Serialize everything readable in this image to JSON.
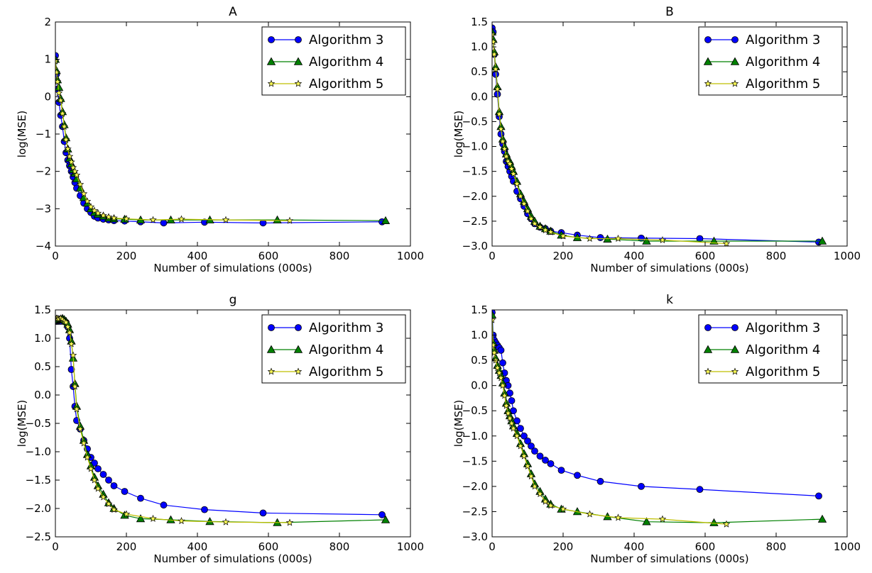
{
  "figure": {
    "legend_labels": [
      "Algorithm 3",
      "Algorithm 4",
      "Algorithm 5"
    ],
    "series_colors": {
      "Algorithm 3": "#0000ff",
      "Algorithm 4": "#008000",
      "Algorithm 5": "#bfbf00"
    },
    "marker_fills": {
      "Algorithm 3": "#0000ff",
      "Algorithm 4": "#008000",
      "Algorithm 5": "#ffff55"
    },
    "marker_shapes": {
      "Algorithm 3": "circle",
      "Algorithm 4": "triangle",
      "Algorithm 5": "star"
    }
  },
  "chart_data": [
    {
      "type": "line",
      "title": "A",
      "xlabel": "Number of simulations (000s)",
      "ylabel": "log(MSE)",
      "xlim": [
        0,
        1000
      ],
      "ylim": [
        -4,
        2
      ],
      "xticks": [
        0,
        200,
        400,
        600,
        800,
        1000
      ],
      "yticks": [
        -4,
        -3,
        -2,
        -1,
        0,
        1,
        2
      ],
      "ytick_labels": [
        "−4",
        "−3",
        "−2",
        "−1",
        "0",
        "1",
        "2"
      ],
      "xtick_labels": [
        "0",
        "200",
        "400",
        "600",
        "800",
        "1000"
      ],
      "legend_position": "upper-right",
      "series": [
        {
          "name": "Algorithm 3",
          "x": [
            0,
            3,
            6,
            10,
            15,
            20,
            25,
            30,
            35,
            40,
            45,
            50,
            55,
            60,
            70,
            80,
            90,
            100,
            110,
            120,
            135,
            150,
            165,
            195,
            240,
            305,
            420,
            585,
            920
          ],
          "y": [
            1.1,
            0.6,
            0.2,
            -0.15,
            -0.5,
            -0.8,
            -1.2,
            -1.5,
            -1.7,
            -1.85,
            -2.0,
            -2.15,
            -2.3,
            -2.45,
            -2.65,
            -2.85,
            -3.0,
            -3.1,
            -3.2,
            -3.25,
            -3.28,
            -3.3,
            -3.32,
            -3.33,
            -3.35,
            -3.38,
            -3.36,
            -3.38,
            -3.35
          ]
        },
        {
          "name": "Algorithm 4",
          "x": [
            0,
            3,
            6,
            10,
            15,
            20,
            25,
            30,
            35,
            40,
            45,
            50,
            55,
            60,
            70,
            80,
            90,
            100,
            110,
            120,
            135,
            150,
            165,
            195,
            240,
            325,
            435,
            625,
            930
          ],
          "y": [
            1.0,
            0.7,
            0.45,
            0.25,
            -0.05,
            -0.4,
            -0.75,
            -1.1,
            -1.4,
            -1.65,
            -1.8,
            -1.95,
            -2.05,
            -2.2,
            -2.45,
            -2.7,
            -2.85,
            -3.0,
            -3.1,
            -3.15,
            -3.2,
            -3.25,
            -3.27,
            -3.28,
            -3.3,
            -3.3,
            -3.3,
            -3.3,
            -3.32
          ]
        },
        {
          "name": "Algorithm 5",
          "x": [
            0,
            3,
            6,
            10,
            15,
            20,
            25,
            30,
            35,
            40,
            45,
            50,
            55,
            60,
            70,
            80,
            90,
            100,
            110,
            120,
            135,
            150,
            165,
            200,
            275,
            355,
            480,
            660
          ],
          "y": [
            0.95,
            0.65,
            0.4,
            0.1,
            -0.1,
            -0.45,
            -0.8,
            -1.15,
            -1.4,
            -1.6,
            -1.75,
            -1.9,
            -2.0,
            -2.1,
            -2.35,
            -2.6,
            -2.8,
            -2.95,
            -3.05,
            -3.12,
            -3.18,
            -3.22,
            -3.25,
            -3.27,
            -3.3,
            -3.28,
            -3.3,
            -3.32
          ]
        }
      ]
    },
    {
      "type": "line",
      "title": "B",
      "xlabel": "Number of simulations (000s)",
      "ylabel": "log(MSE)",
      "xlim": [
        0,
        1000
      ],
      "ylim": [
        -3,
        1.5
      ],
      "xticks": [
        0,
        200,
        400,
        600,
        800,
        1000
      ],
      "yticks": [
        -3.0,
        -2.5,
        -2.0,
        -1.5,
        -1.0,
        -0.5,
        0.0,
        0.5,
        1.0,
        1.5
      ],
      "ytick_labels": [
        "−3.0",
        "−2.5",
        "−2.0",
        "−1.5",
        "−1.0",
        "−0.5",
        "0.0",
        "0.5",
        "1.0",
        "1.5"
      ],
      "xtick_labels": [
        "0",
        "200",
        "400",
        "600",
        "800",
        "1000"
      ],
      "legend_position": "upper-right",
      "series": [
        {
          "name": "Algorithm 3",
          "x": [
            0,
            3,
            6,
            10,
            15,
            20,
            25,
            30,
            35,
            40,
            45,
            50,
            55,
            60,
            70,
            80,
            90,
            100,
            110,
            120,
            135,
            150,
            165,
            195,
            240,
            305,
            420,
            585,
            920
          ],
          "y": [
            1.38,
            1.3,
            0.85,
            0.45,
            0.05,
            -0.4,
            -0.75,
            -0.95,
            -1.1,
            -1.3,
            -1.4,
            -1.5,
            -1.6,
            -1.7,
            -1.9,
            -2.05,
            -2.2,
            -2.35,
            -2.45,
            -2.55,
            -2.62,
            -2.65,
            -2.7,
            -2.73,
            -2.78,
            -2.83,
            -2.84,
            -2.85,
            -2.92
          ]
        },
        {
          "name": "Algorithm 4",
          "x": [
            0,
            3,
            6,
            10,
            15,
            20,
            25,
            30,
            35,
            40,
            45,
            50,
            55,
            60,
            70,
            80,
            90,
            100,
            110,
            120,
            135,
            150,
            165,
            195,
            240,
            325,
            435,
            625,
            930
          ],
          "y": [
            1.3,
            1.15,
            0.9,
            0.6,
            0.2,
            -0.3,
            -0.6,
            -0.85,
            -1.0,
            -1.15,
            -1.25,
            -1.3,
            -1.4,
            -1.5,
            -1.7,
            -1.95,
            -2.1,
            -2.25,
            -2.4,
            -2.5,
            -2.6,
            -2.65,
            -2.7,
            -2.78,
            -2.83,
            -2.86,
            -2.9,
            -2.9,
            -2.9
          ]
        },
        {
          "name": "Algorithm 5",
          "x": [
            0,
            3,
            6,
            10,
            15,
            20,
            25,
            30,
            35,
            40,
            45,
            50,
            55,
            60,
            70,
            80,
            90,
            100,
            110,
            120,
            135,
            150,
            165,
            200,
            275,
            355,
            480,
            660
          ],
          "y": [
            1.25,
            1.1,
            0.85,
            0.55,
            0.15,
            -0.35,
            -0.65,
            -0.9,
            -1.05,
            -1.2,
            -1.3,
            -1.35,
            -1.45,
            -1.55,
            -1.75,
            -2.0,
            -2.15,
            -2.3,
            -2.45,
            -2.55,
            -2.62,
            -2.68,
            -2.72,
            -2.8,
            -2.85,
            -2.85,
            -2.88,
            -2.95
          ]
        }
      ]
    },
    {
      "type": "line",
      "title": "g",
      "xlabel": "Number of simulations (000s)",
      "ylabel": "log(MSE)",
      "xlim": [
        0,
        1000
      ],
      "ylim": [
        -2.5,
        1.5
      ],
      "xticks": [
        0,
        200,
        400,
        600,
        800,
        1000
      ],
      "yticks": [
        -2.5,
        -2.0,
        -1.5,
        -1.0,
        -0.5,
        0.0,
        0.5,
        1.0,
        1.5
      ],
      "ytick_labels": [
        "−2.5",
        "−2.0",
        "−1.5",
        "−1.0",
        "−0.5",
        "0.0",
        "0.5",
        "1.0",
        "1.5"
      ],
      "xtick_labels": [
        "0",
        "200",
        "400",
        "600",
        "800",
        "1000"
      ],
      "legend_position": "upper-right",
      "series": [
        {
          "name": "Algorithm 3",
          "x": [
            0,
            3,
            6,
            10,
            15,
            20,
            25,
            30,
            35,
            40,
            45,
            50,
            55,
            60,
            70,
            80,
            90,
            100,
            110,
            120,
            135,
            150,
            165,
            195,
            240,
            305,
            420,
            585,
            920
          ],
          "y": [
            1.3,
            1.3,
            1.3,
            1.3,
            1.3,
            1.32,
            1.3,
            1.28,
            1.2,
            1.0,
            0.45,
            0.15,
            -0.2,
            -0.45,
            -0.6,
            -0.8,
            -0.95,
            -1.1,
            -1.2,
            -1.3,
            -1.4,
            -1.5,
            -1.6,
            -1.7,
            -1.82,
            -1.94,
            -2.02,
            -2.08,
            -2.11
          ]
        },
        {
          "name": "Algorithm 4",
          "x": [
            0,
            3,
            6,
            10,
            15,
            20,
            25,
            30,
            35,
            40,
            45,
            50,
            55,
            60,
            70,
            80,
            90,
            100,
            110,
            120,
            135,
            150,
            165,
            195,
            240,
            325,
            435,
            625,
            930
          ],
          "y": [
            1.32,
            1.32,
            1.33,
            1.33,
            1.34,
            1.35,
            1.33,
            1.3,
            1.25,
            1.15,
            0.95,
            0.65,
            0.2,
            -0.2,
            -0.55,
            -0.8,
            -1.05,
            -1.25,
            -1.45,
            -1.6,
            -1.75,
            -1.9,
            -2.0,
            -2.12,
            -2.18,
            -2.2,
            -2.23,
            -2.25,
            -2.2
          ]
        },
        {
          "name": "Algorithm 5",
          "x": [
            0,
            3,
            6,
            10,
            15,
            20,
            25,
            30,
            35,
            40,
            45,
            50,
            55,
            60,
            70,
            80,
            90,
            100,
            110,
            120,
            135,
            150,
            165,
            200,
            275,
            355,
            480,
            660
          ],
          "y": [
            1.35,
            1.35,
            1.35,
            1.34,
            1.35,
            1.33,
            1.3,
            1.28,
            1.2,
            1.1,
            0.9,
            0.7,
            0.15,
            -0.25,
            -0.6,
            -0.85,
            -1.1,
            -1.3,
            -1.5,
            -1.65,
            -1.8,
            -1.92,
            -2.02,
            -2.1,
            -2.18,
            -2.22,
            -2.24,
            -2.25
          ]
        }
      ]
    },
    {
      "type": "line",
      "title": "k",
      "xlabel": "Number of simulations (000s)",
      "ylabel": "log(MSE)",
      "xlim": [
        0,
        1000
      ],
      "ylim": [
        -3,
        1.5
      ],
      "xticks": [
        0,
        200,
        400,
        600,
        800,
        1000
      ],
      "yticks": [
        -3.0,
        -2.5,
        -2.0,
        -1.5,
        -1.0,
        -0.5,
        0.0,
        0.5,
        1.0,
        1.5
      ],
      "ytick_labels": [
        "−3.0",
        "−2.5",
        "−2.0",
        "−1.5",
        "−1.0",
        "−0.5",
        "0.0",
        "0.5",
        "1.0",
        "1.5"
      ],
      "xtick_labels": [
        "0",
        "200",
        "400",
        "600",
        "800",
        "1000"
      ],
      "legend_position": "upper-right",
      "series": [
        {
          "name": "Algorithm 3",
          "x": [
            0,
            3,
            6,
            10,
            15,
            20,
            25,
            30,
            35,
            40,
            45,
            50,
            55,
            60,
            70,
            80,
            90,
            100,
            110,
            120,
            135,
            150,
            165,
            195,
            240,
            305,
            420,
            585,
            920
          ],
          "y": [
            1.45,
            1.0,
            0.9,
            0.85,
            0.8,
            0.75,
            0.7,
            0.45,
            0.25,
            0.1,
            0.0,
            -0.15,
            -0.3,
            -0.5,
            -0.7,
            -0.85,
            -1.0,
            -1.1,
            -1.2,
            -1.3,
            -1.4,
            -1.48,
            -1.55,
            -1.68,
            -1.78,
            -1.9,
            -2.0,
            -2.06,
            -2.19
          ]
        },
        {
          "name": "Algorithm 4",
          "x": [
            0,
            3,
            6,
            10,
            15,
            20,
            25,
            30,
            35,
            40,
            45,
            50,
            55,
            60,
            70,
            80,
            90,
            100,
            110,
            120,
            135,
            150,
            165,
            195,
            240,
            325,
            435,
            625,
            930
          ],
          "y": [
            1.4,
            0.85,
            0.7,
            0.55,
            0.4,
            0.3,
            0.2,
            0.05,
            -0.15,
            -0.35,
            -0.5,
            -0.6,
            -0.7,
            -0.8,
            -0.95,
            -1.15,
            -1.35,
            -1.55,
            -1.75,
            -1.95,
            -2.1,
            -2.25,
            -2.35,
            -2.45,
            -2.5,
            -2.6,
            -2.7,
            -2.72,
            -2.65
          ]
        },
        {
          "name": "Algorithm 5",
          "x": [
            0,
            3,
            6,
            10,
            15,
            20,
            25,
            30,
            35,
            40,
            45,
            50,
            55,
            60,
            70,
            80,
            90,
            100,
            110,
            120,
            135,
            150,
            165,
            200,
            275,
            355,
            480,
            660
          ],
          "y": [
            1.3,
            0.8,
            0.65,
            0.5,
            0.35,
            0.25,
            0.15,
            0.0,
            -0.2,
            -0.4,
            -0.55,
            -0.65,
            -0.75,
            -0.85,
            -1.0,
            -1.2,
            -1.4,
            -1.6,
            -1.8,
            -2.0,
            -2.15,
            -2.3,
            -2.38,
            -2.45,
            -2.55,
            -2.62,
            -2.65,
            -2.75
          ]
        }
      ]
    }
  ]
}
